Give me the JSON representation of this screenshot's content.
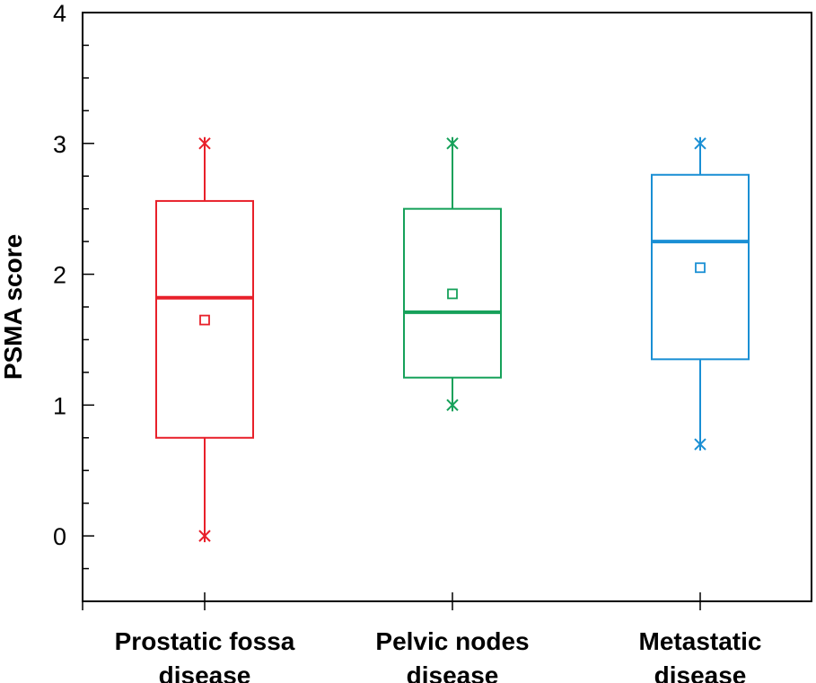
{
  "chart_data": {
    "type": "box",
    "title": "",
    "xlabel": "",
    "ylabel": "PSMA score",
    "ylim": [
      -0.5,
      4
    ],
    "yticks": [
      0,
      1,
      2,
      3,
      4
    ],
    "grid": false,
    "categories": [
      {
        "label_lines": [
          "Prostatic fossa",
          "disease"
        ],
        "color": "#e8202a",
        "min": 0,
        "q1": 0.75,
        "median": 1.82,
        "q3": 2.56,
        "max": 3,
        "mean": 1.65
      },
      {
        "label_lines": [
          "Pelvic nodes",
          "disease"
        ],
        "color": "#16a15a",
        "min": 1,
        "q1": 1.21,
        "median": 1.71,
        "q3": 2.5,
        "max": 3,
        "mean": 1.85
      },
      {
        "label_lines": [
          "Metastatic",
          "disease"
        ],
        "color": "#1a8fd4",
        "min": 0.7,
        "q1": 1.35,
        "median": 2.25,
        "q3": 2.76,
        "max": 3,
        "mean": 2.05
      }
    ]
  }
}
